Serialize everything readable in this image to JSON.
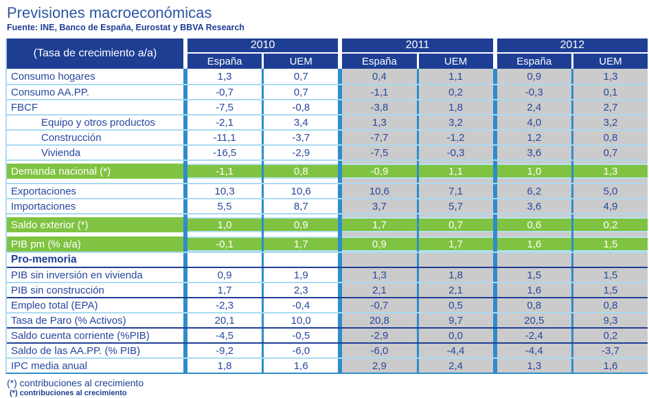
{
  "title": "Previsiones macroeconómicas",
  "subtitle": "Fuente: INE, Banco de España, Eurostat y BBVA Research",
  "footnotes": [
    "(*) contribuciones al crecimiento",
    "(*) contribuciones al crecimiento"
  ],
  "colors": {
    "navy": "#1e3e94",
    "data_text": "#27479e",
    "title_text": "#2b55a4",
    "green": "#80c342",
    "bar_blue": "#2e8ccb",
    "light_line": "#a9daf2",
    "shaded_gray": "#cbcbcb"
  },
  "table": {
    "corner_label": "(Tasa de crecimiento a/a)",
    "year_groups": [
      {
        "year": "2010",
        "subcols": [
          "España",
          "UEM"
        ],
        "shaded": false
      },
      {
        "year": "2011",
        "subcols": [
          "España",
          "UEM"
        ],
        "shaded": true
      },
      {
        "year": "2012",
        "subcols": [
          "España",
          "UEM"
        ],
        "shaded": true
      }
    ],
    "rows": [
      {
        "label": "Consumo hogares",
        "values": [
          "1,3",
          "0,7",
          "0,4",
          "1,1",
          "0,9",
          "1,3"
        ],
        "style": "normal",
        "topline": "none"
      },
      {
        "label": "Consumo AA.PP.",
        "values": [
          "-0,7",
          "0,7",
          "-1,1",
          "0,2",
          "-0,3",
          "0,1"
        ],
        "style": "normal",
        "topline": "light"
      },
      {
        "label": "FBCF",
        "values": [
          "-7,5",
          "-0,8",
          "-3,8",
          "1,8",
          "2,4",
          "2,7"
        ],
        "style": "normal",
        "topline": "light"
      },
      {
        "label": "Equipo y otros productos",
        "values": [
          "-2,1",
          "3,4",
          "1,3",
          "3,2",
          "4,0",
          "3,2"
        ],
        "style": "indent",
        "topline": "light"
      },
      {
        "label": "Construcción",
        "values": [
          "-11,1",
          "-3,7",
          "-7,7",
          "-1,2",
          "1,2",
          "0,8"
        ],
        "style": "indent",
        "topline": "light"
      },
      {
        "label": "Vivienda",
        "values": [
          "-16,5",
          "-2,9",
          "-7,5",
          "-0,3",
          "3,6",
          "0,7"
        ],
        "style": "indent",
        "topline": "light"
      },
      {
        "style": "gap",
        "topline": "light"
      },
      {
        "label": "Demanda nacional (*)",
        "values": [
          "-1,1",
          "0,8",
          "-0,9",
          "1,1",
          "1,0",
          "1,3"
        ],
        "style": "green",
        "topline": "none"
      },
      {
        "style": "gap",
        "topline": "none"
      },
      {
        "label": "Exportaciones",
        "values": [
          "10,3",
          "10,6",
          "10,6",
          "7,1",
          "6,2",
          "5,0"
        ],
        "style": "normal",
        "topline": "light"
      },
      {
        "label": "Importaciones",
        "values": [
          "5,5",
          "8,7",
          "3,7",
          "5,7",
          "3,6",
          "4,9"
        ],
        "style": "normal",
        "topline": "light"
      },
      {
        "style": "gap",
        "topline": "light"
      },
      {
        "label": "Saldo exterior (*)",
        "values": [
          "1,0",
          "0,9",
          "1,7",
          "0,7",
          "0,6",
          "0,2"
        ],
        "style": "green",
        "topline": "none"
      },
      {
        "style": "gap",
        "topline": "none"
      },
      {
        "label": "PIB pm (% a/a)",
        "values": [
          "-0,1",
          "1,7",
          "0,9",
          "1,7",
          "1,6",
          "1,5"
        ],
        "style": "green",
        "topline": "none"
      },
      {
        "label": "Pro-memoria",
        "values": [
          "",
          "",
          "",
          "",
          "",
          ""
        ],
        "style": "section",
        "topline": "light"
      },
      {
        "label": "PIB sin inversión en vivienda",
        "values": [
          "0,9",
          "1,9",
          "1,3",
          "1,8",
          "1,5",
          "1,5"
        ],
        "style": "normal",
        "topline": "dark"
      },
      {
        "label": "PIB sin construcción",
        "values": [
          "1,7",
          "2,3",
          "2,1",
          "2,1",
          "1,6",
          "1,5"
        ],
        "style": "normal",
        "topline": "light"
      },
      {
        "label": "Empleo total (EPA)",
        "values": [
          "-2,3",
          "-0,4",
          "-0,7",
          "0,5",
          "0,8",
          "0,8"
        ],
        "style": "normal",
        "topline": "dark"
      },
      {
        "label": "Tasa de Paro (% Activos)",
        "values": [
          "20,1",
          "10,0",
          "20,8",
          "9,7",
          "20,5",
          "9,3"
        ],
        "style": "normal",
        "topline": "light"
      },
      {
        "label": "Saldo cuenta corriente (%PIB)",
        "values": [
          "-4,5",
          "-0,5",
          "-2,9",
          "0,0",
          "-2,4",
          "0,2"
        ],
        "style": "normal",
        "topline": "dark"
      },
      {
        "label": "Saldo de las AA.PP. (% PIB)",
        "values": [
          "-9,2",
          "-6,0",
          "-6,0",
          "-4,4",
          "-4,4",
          "-3,7"
        ],
        "style": "normal",
        "topline": "dark"
      },
      {
        "label": "IPC media anual",
        "values": [
          "1,8",
          "1,6",
          "2,9",
          "2,4",
          "1,3",
          "1,6"
        ],
        "style": "normal",
        "topline": "light"
      }
    ]
  }
}
